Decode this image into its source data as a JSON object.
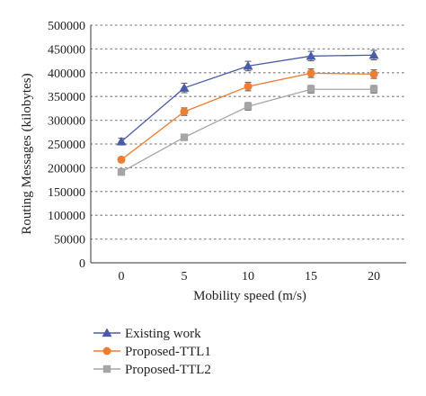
{
  "chart_data": {
    "type": "line",
    "title": "",
    "xlabel": "Mobility speed (m/s)",
    "ylabel": "Routing Messages (kilobytes)",
    "x": [
      0,
      5,
      10,
      15,
      20
    ],
    "xlim": [
      0,
      20
    ],
    "ylim": [
      0,
      500000
    ],
    "x_ticks": [
      "0",
      "5",
      "10",
      "15",
      "20"
    ],
    "y_ticks": [
      "0",
      "50000",
      "100000",
      "150000",
      "200000",
      "250000",
      "300000",
      "350000",
      "400000",
      "450000",
      "500000"
    ],
    "grid": "horizontal dotted",
    "legend_position": "bottom-left",
    "series": [
      {
        "name": "Existing work",
        "marker": "triangle",
        "color": "#4a5ba8",
        "values": [
          255000,
          368000,
          414000,
          435000,
          437000
        ],
        "errors": [
          7000,
          10000,
          10000,
          10000,
          10000
        ]
      },
      {
        "name": "Proposed-TTL1",
        "marker": "circle",
        "color": "#ed7d31",
        "values": [
          217000,
          318000,
          371000,
          399000,
          397000
        ],
        "errors": [
          5000,
          8000,
          9000,
          9000,
          9000
        ]
      },
      {
        "name": "Proposed-TTL2",
        "marker": "square",
        "color": "#a5a5a5",
        "values": [
          191000,
          264000,
          329000,
          365000,
          365000
        ],
        "errors": [
          5000,
          6000,
          8000,
          8000,
          8000
        ]
      }
    ]
  }
}
